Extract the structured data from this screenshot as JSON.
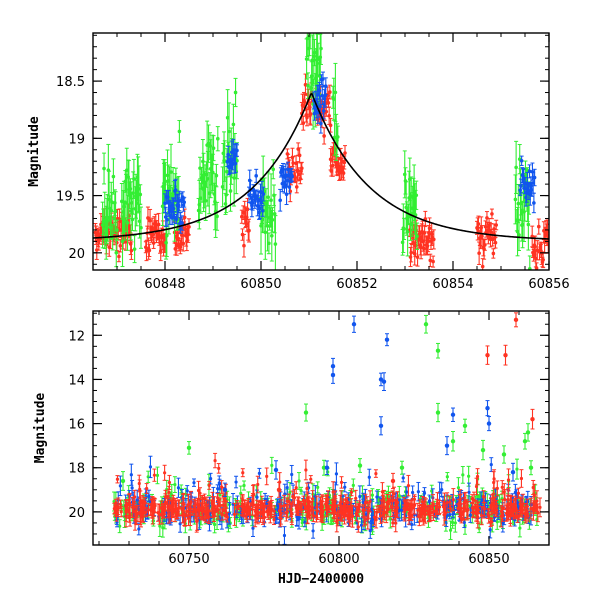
{
  "colors": {
    "green": "#33ee33",
    "blue": "#1155ee",
    "red": "#ff3322",
    "model": "#000000",
    "axis": "#000000"
  },
  "chart_data": [
    {
      "type": "scatter",
      "title": "",
      "xlabel": "",
      "ylabel": "Magnitude",
      "xlim": [
        60846.5,
        60856
      ],
      "ylim": [
        20.15,
        18.08
      ],
      "y_inverted": true,
      "x_ticks": [
        60848,
        60850,
        60852,
        60854,
        60856
      ],
      "y_ticks": [
        18.5,
        19,
        19.5,
        20
      ],
      "x_minor_step": 0.5,
      "y_minor_step": 0.1,
      "model_curve": {
        "t0": 60851.05,
        "peak_mag": 18.6,
        "baseline_mag": 19.9,
        "width_days": 1.2
      },
      "series": [
        {
          "color": "red",
          "clusters": [
            [
              60846.55,
              60847.3,
              19.85
            ],
            [
              60847.6,
              60848.0,
              19.85
            ],
            [
              60848.2,
              60848.5,
              19.85
            ],
            [
              60849.6,
              60849.75,
              19.7
            ],
            [
              60850.55,
              60850.85,
              19.25
            ],
            [
              60850.85,
              60851.05,
              18.75
            ],
            [
              60851.15,
              60851.45,
              18.75
            ],
            [
              60851.45,
              60851.75,
              19.2
            ],
            [
              60853.1,
              60853.6,
              19.9
            ],
            [
              60854.5,
              60854.9,
              19.85
            ],
            [
              60855.65,
              60856.0,
              19.95
            ]
          ]
        },
        {
          "color": "green",
          "clusters": [
            [
              60846.7,
              60847.0,
              19.7
            ],
            [
              60847.1,
              60847.5,
              19.6
            ],
            [
              60847.95,
              60848.3,
              19.55
            ],
            [
              60848.7,
              60849.1,
              19.4
            ],
            [
              60849.2,
              60849.5,
              19.2
            ],
            [
              60850.0,
              60850.3,
              19.6
            ],
            [
              60850.95,
              60851.25,
              18.35
            ],
            [
              60851.5,
              60851.6,
              18.8
            ],
            [
              60852.95,
              60853.25,
              19.6
            ],
            [
              60855.3,
              60855.6,
              19.55
            ]
          ]
        },
        {
          "color": "blue",
          "clusters": [
            [
              60848.0,
              60848.4,
              19.6
            ],
            [
              60849.3,
              60849.5,
              19.15
            ],
            [
              60849.75,
              60850.05,
              19.5
            ],
            [
              60850.4,
              60850.65,
              19.35
            ],
            [
              60851.1,
              60851.35,
              18.65
            ],
            [
              60855.4,
              60855.7,
              19.4
            ]
          ]
        }
      ]
    },
    {
      "type": "scatter",
      "title": "",
      "xlabel": "HJD−2400000",
      "ylabel": "Magnitude",
      "xlim": [
        60718,
        60870
      ],
      "ylim": [
        21.5,
        10.9
      ],
      "y_inverted": true,
      "x_ticks": [
        60750,
        60800,
        60850
      ],
      "y_ticks": [
        12,
        14,
        16,
        18,
        20
      ],
      "x_minor_step": 10,
      "y_minor_step": 0.5,
      "baseline_mag": 19.9,
      "series": [
        {
          "color": "red",
          "x_range": [
            60725,
            60867
          ],
          "outliers": [
            [
              60849.5,
              12.9
            ],
            [
              60855.5,
              12.9
            ],
            [
              60859,
              11.3
            ],
            [
              60864.5,
              15.8
            ],
            [
              60818,
              18.6
            ],
            [
              60780,
              19.0
            ]
          ]
        },
        {
          "color": "green",
          "x_range": [
            60725,
            60866
          ],
          "outliers": [
            [
              60750,
              17.1
            ],
            [
              60789,
              15.5
            ],
            [
              60829,
              11.5
            ],
            [
              60833,
              12.7
            ],
            [
              60833,
              15.5
            ],
            [
              60838,
              16.8
            ],
            [
              60842,
              16.1
            ],
            [
              60848,
              17.2
            ],
            [
              60855,
              17.4
            ],
            [
              60862,
              16.8
            ],
            [
              60863,
              16.4
            ],
            [
              60864,
              18.0
            ],
            [
              60795,
              18.0
            ],
            [
              60807,
              17.9
            ],
            [
              60821,
              18.0
            ],
            [
              60728,
              18.6
            ]
          ]
        },
        {
          "color": "blue",
          "x_range": [
            60725,
            60866
          ],
          "outliers": [
            [
              60798,
              13.4
            ],
            [
              60798,
              13.8
            ],
            [
              60805,
              11.5
            ],
            [
              60814,
              14.0
            ],
            [
              60815,
              14.1
            ],
            [
              60816,
              12.2
            ],
            [
              60814,
              16.1
            ],
            [
              60836,
              17.0
            ],
            [
              60838,
              15.6
            ],
            [
              60849.5,
              15.3
            ],
            [
              60850,
              16.0
            ],
            [
              60858,
              18.2
            ],
            [
              60762,
              19.0
            ],
            [
              60779,
              18.1
            ],
            [
              60796,
              18.0
            ]
          ]
        }
      ]
    }
  ]
}
